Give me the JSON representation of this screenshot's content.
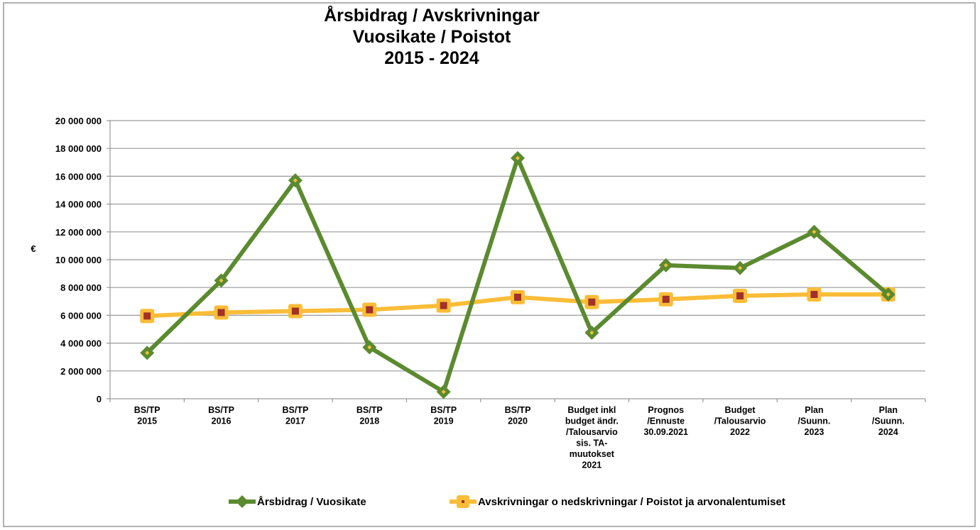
{
  "chart_data": {
    "type": "line",
    "title": "Årsbidrag / Avskrivningar\nVuosikate / Poistot\n2015 - 2024",
    "y_label": "€",
    "categories": [
      "BS/TP\n2015",
      "BS/TP\n2016",
      "BS/TP\n2017",
      "BS/TP\n2018",
      "BS/TP\n2019",
      "BS/TP\n2020",
      "Budget inkl\nbudget ändr.\n/Talousarvio\nsis. TA-\nmuutokset\n2021",
      "Prognos\n/Ennuste\n30.09.2021",
      "Budget\n/Talousarvio\n2022",
      "Plan\n/Suunn.\n2023",
      "Plan\n/Suunn.\n2024"
    ],
    "series": [
      {
        "name": "Årsbidrag / Vuosikate",
        "color": "#5b8a2f",
        "marker": "diamond",
        "marker_center": "#f2c13c",
        "values": [
          3300000,
          8500000,
          15700000,
          3700000,
          500000,
          17300000,
          4750000,
          9600000,
          9400000,
          12000000,
          7500000
        ]
      },
      {
        "name": "Avskrivningar o nedskrivningar / Poistot ja arvonalentumiset",
        "color": "#f9bd38",
        "marker": "square",
        "marker_center": "#a3302a",
        "values": [
          5950000,
          6200000,
          6300000,
          6400000,
          6700000,
          7300000,
          6950000,
          7150000,
          7400000,
          7500000,
          7500000
        ]
      }
    ],
    "ylim": [
      0,
      20000000
    ],
    "yticks": [
      0,
      {
        "value": 2000000,
        "label": "2 000 000"
      },
      {
        "value": 4000000,
        "label": "4 000 000"
      },
      {
        "value": 6000000,
        "label": "6 000 000"
      },
      {
        "value": 8000000,
        "label": "8 000 000"
      },
      {
        "value": 10000000,
        "label": "10 000 000"
      },
      {
        "value": 12000000,
        "label": "12 000 000"
      },
      {
        "value": 14000000,
        "label": "14 000 000"
      },
      {
        "value": 16000000,
        "label": "16 000 000"
      },
      {
        "value": 18000000,
        "label": "18 000 000"
      },
      {
        "value": 20000000,
        "label": "20 000 000"
      }
    ],
    "grid": true,
    "legend": "bottom"
  }
}
